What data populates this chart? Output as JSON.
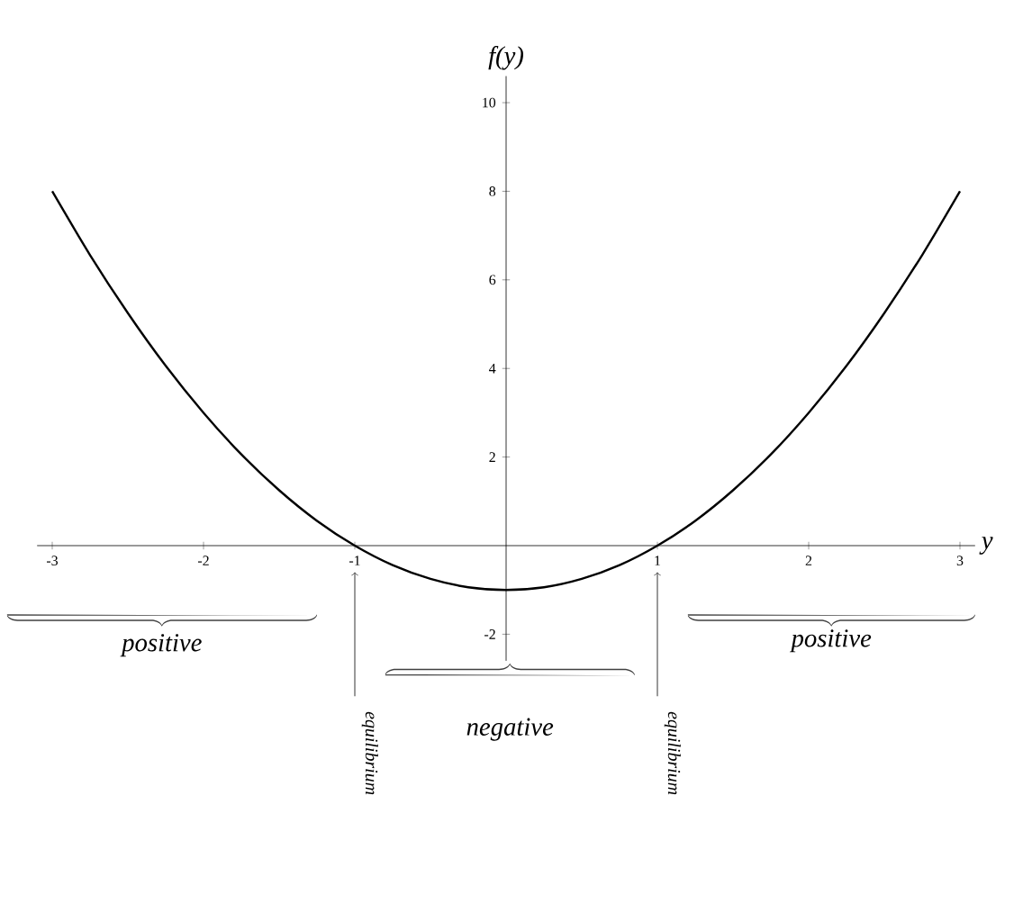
{
  "chart_data": {
    "type": "line",
    "xlabel": "y",
    "ylabel": "f(y)",
    "x": [
      -3,
      -2.75,
      -2.5,
      -2.25,
      -2,
      -1.75,
      -1.5,
      -1.25,
      -1,
      -0.75,
      -0.5,
      -0.25,
      0,
      0.25,
      0.5,
      0.75,
      1,
      1.25,
      1.5,
      1.75,
      2,
      2.25,
      2.5,
      2.75,
      3
    ],
    "series": [
      {
        "color": "#000000",
        "values": [
          8,
          6.56,
          5.25,
          4.06,
          3,
          2.06,
          1.25,
          0.56,
          0,
          -0.44,
          -0.75,
          -0.94,
          -1,
          -0.94,
          -0.75,
          -0.44,
          0,
          0.56,
          1.25,
          2.06,
          3,
          4.06,
          5.25,
          6.56,
          8
        ]
      }
    ],
    "xlim": [
      -3.1,
      3.1
    ],
    "ylim": [
      -2.6,
      10.6
    ],
    "xticks": [
      -3,
      -2,
      -1,
      1,
      2,
      3
    ],
    "yticks": [
      -2,
      2,
      4,
      6,
      8,
      10
    ],
    "marker": "none",
    "line_style": "solid",
    "grid": false,
    "annotations": [
      "positive",
      "negative",
      "positive",
      "equilibrium",
      "equilibrium"
    ]
  }
}
